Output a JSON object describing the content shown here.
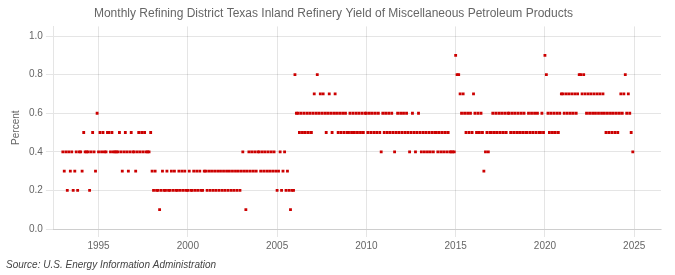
{
  "chart_data": {
    "type": "scatter",
    "title": "Monthly Refining District Texas Inland Refinery Yield of Miscellaneous Petroleum Products",
    "ylabel": "Percent",
    "source": "Source: U.S. Energy Information Administration",
    "color": "#cc0000",
    "marker": "square",
    "grid": true,
    "xlim": [
      1992.5,
      2026.5
    ],
    "xticks": [
      1995,
      2000,
      2005,
      2010,
      2015,
      2020,
      2025
    ],
    "ylim": [
      0.0,
      1.05
    ],
    "yticks": [
      {
        "value": 0.0,
        "label": "0.0"
      },
      0.2,
      0.4,
      0.6,
      0.8,
      {
        "value": 1.0,
        "label": "1.0"
      }
    ],
    "x": [
      1993.0,
      1993.08,
      1993.17,
      1993.25,
      1993.33,
      1993.42,
      1993.5,
      1993.58,
      1993.67,
      1993.75,
      1993.83,
      1993.92,
      1994.0,
      1994.08,
      1994.17,
      1994.25,
      1994.33,
      1994.42,
      1994.5,
      1994.58,
      1994.67,
      1994.75,
      1994.83,
      1994.92,
      1995.0,
      1995.08,
      1995.17,
      1995.25,
      1995.33,
      1995.42,
      1995.5,
      1995.58,
      1995.67,
      1995.75,
      1995.83,
      1995.92,
      1996.0,
      1996.08,
      1996.17,
      1996.25,
      1996.33,
      1996.42,
      1996.5,
      1996.58,
      1996.67,
      1996.75,
      1996.83,
      1996.92,
      1997.0,
      1997.08,
      1997.17,
      1997.25,
      1997.33,
      1997.42,
      1997.5,
      1997.58,
      1997.67,
      1997.75,
      1997.83,
      1997.92,
      1998.0,
      1998.08,
      1998.17,
      1998.25,
      1998.33,
      1998.42,
      1998.5,
      1998.58,
      1998.67,
      1998.75,
      1998.83,
      1998.92,
      1999.0,
      1999.08,
      1999.17,
      1999.25,
      1999.33,
      1999.42,
      1999.5,
      1999.58,
      1999.67,
      1999.75,
      1999.83,
      1999.92,
      2000.0,
      2000.08,
      2000.17,
      2000.25,
      2000.33,
      2000.42,
      2000.5,
      2000.58,
      2000.67,
      2000.75,
      2000.83,
      2000.92,
      2001.0,
      2001.08,
      2001.17,
      2001.25,
      2001.33,
      2001.42,
      2001.5,
      2001.58,
      2001.67,
      2001.75,
      2001.83,
      2001.92,
      2002.0,
      2002.08,
      2002.17,
      2002.25,
      2002.33,
      2002.42,
      2002.5,
      2002.58,
      2002.67,
      2002.75,
      2002.83,
      2002.92,
      2003.0,
      2003.08,
      2003.17,
      2003.25,
      2003.33,
      2003.42,
      2003.5,
      2003.58,
      2003.67,
      2003.75,
      2003.83,
      2003.92,
      2004.0,
      2004.08,
      2004.17,
      2004.25,
      2004.33,
      2004.42,
      2004.5,
      2004.58,
      2004.67,
      2004.75,
      2004.83,
      2004.92,
      2005.0,
      2005.08,
      2005.17,
      2005.25,
      2005.33,
      2005.42,
      2005.5,
      2005.58,
      2005.67,
      2005.75,
      2005.83,
      2005.92,
      2006.0,
      2006.08,
      2006.17,
      2006.25,
      2006.33,
      2006.42,
      2006.5,
      2006.58,
      2006.67,
      2006.75,
      2006.83,
      2006.92,
      2007.0,
      2007.08,
      2007.17,
      2007.25,
      2007.33,
      2007.42,
      2007.5,
      2007.58,
      2007.67,
      2007.75,
      2007.83,
      2007.92,
      2008.0,
      2008.08,
      2008.17,
      2008.25,
      2008.33,
      2008.42,
      2008.5,
      2008.58,
      2008.67,
      2008.75,
      2008.83,
      2008.92,
      2009.0,
      2009.08,
      2009.17,
      2009.25,
      2009.33,
      2009.42,
      2009.5,
      2009.58,
      2009.67,
      2009.75,
      2009.83,
      2009.92,
      2010.0,
      2010.08,
      2010.17,
      2010.25,
      2010.33,
      2010.42,
      2010.5,
      2010.58,
      2010.67,
      2010.75,
      2010.83,
      2010.92,
      2011.0,
      2011.08,
      2011.17,
      2011.25,
      2011.33,
      2011.42,
      2011.5,
      2011.58,
      2011.67,
      2011.75,
      2011.83,
      2011.92,
      2012.0,
      2012.08,
      2012.17,
      2012.25,
      2012.33,
      2012.42,
      2012.5,
      2012.58,
      2012.67,
      2012.75,
      2012.83,
      2012.92,
      2013.0,
      2013.08,
      2013.17,
      2013.25,
      2013.33,
      2013.42,
      2013.5,
      2013.58,
      2013.67,
      2013.75,
      2013.83,
      2013.92,
      2014.0,
      2014.08,
      2014.17,
      2014.25,
      2014.33,
      2014.42,
      2014.5,
      2014.58,
      2014.67,
      2014.75,
      2014.83,
      2014.92,
      2015.0,
      2015.08,
      2015.17,
      2015.25,
      2015.33,
      2015.42,
      2015.5,
      2015.58,
      2015.67,
      2015.75,
      2015.83,
      2015.92,
      2016.0,
      2016.08,
      2016.17,
      2016.25,
      2016.33,
      2016.42,
      2016.5,
      2016.58,
      2016.67,
      2016.75,
      2016.83,
      2016.92,
      2017.0,
      2017.08,
      2017.17,
      2017.25,
      2017.33,
      2017.42,
      2017.5,
      2017.58,
      2017.67,
      2017.75,
      2017.83,
      2017.92,
      2018.0,
      2018.08,
      2018.17,
      2018.25,
      2018.33,
      2018.42,
      2018.5,
      2018.58,
      2018.67,
      2018.75,
      2018.83,
      2018.92,
      2019.0,
      2019.08,
      2019.17,
      2019.25,
      2019.33,
      2019.42,
      2019.5,
      2019.58,
      2019.67,
      2019.75,
      2019.83,
      2019.92,
      2020.0,
      2020.08,
      2020.17,
      2020.25,
      2020.33,
      2020.42,
      2020.5,
      2020.58,
      2020.67,
      2020.75,
      2020.83,
      2020.92,
      2021.0,
      2021.08,
      2021.17,
      2021.25,
      2021.33,
      2021.42,
      2021.5,
      2021.58,
      2021.67,
      2021.75,
      2021.83,
      2021.92,
      2022.0,
      2022.08,
      2022.17,
      2022.25,
      2022.33,
      2022.42,
      2022.5,
      2022.58,
      2022.67,
      2022.75,
      2022.83,
      2022.92,
      2023.0,
      2023.08,
      2023.17,
      2023.25,
      2023.33,
      2023.42,
      2023.5,
      2023.58,
      2023.67,
      2023.75,
      2023.83,
      2023.92,
      2024.0,
      2024.08,
      2024.17,
      2024.25,
      2024.33,
      2024.42,
      2024.5,
      2024.58,
      2024.67,
      2024.75,
      2024.83,
      2024.92
    ],
    "values": [
      0.4,
      0.3,
      0.4,
      0.2,
      0.4,
      0.3,
      0.4,
      0.2,
      0.3,
      0.4,
      0.2,
      0.4,
      0.4,
      0.3,
      0.5,
      0.4,
      0.4,
      0.4,
      0.2,
      0.4,
      0.5,
      0.4,
      0.3,
      0.6,
      0.4,
      0.5,
      0.4,
      0.5,
      0.4,
      0.4,
      0.5,
      0.5,
      0.4,
      0.5,
      0.4,
      0.4,
      0.4,
      0.4,
      0.5,
      0.4,
      0.3,
      0.4,
      0.5,
      0.4,
      0.3,
      0.4,
      0.5,
      0.4,
      0.4,
      0.3,
      0.4,
      0.5,
      0.4,
      0.5,
      0.4,
      0.5,
      0.4,
      0.4,
      0.4,
      0.5,
      0.3,
      0.2,
      0.3,
      0.2,
      0.2,
      0.1,
      0.2,
      0.3,
      0.2,
      0.2,
      0.3,
      0.2,
      0.2,
      0.3,
      0.2,
      0.3,
      0.2,
      0.2,
      0.3,
      0.2,
      0.3,
      0.2,
      0.3,
      0.2,
      0.2,
      0.3,
      0.2,
      0.2,
      0.3,
      0.2,
      0.3,
      0.2,
      0.3,
      0.2,
      0.2,
      0.3,
      0.3,
      0.2,
      0.3,
      0.2,
      0.3,
      0.2,
      0.3,
      0.2,
      0.3,
      0.2,
      0.3,
      0.2,
      0.3,
      0.2,
      0.3,
      0.2,
      0.3,
      0.2,
      0.3,
      0.2,
      0.3,
      0.2,
      0.3,
      0.2,
      0.3,
      0.4,
      0.3,
      0.1,
      0.3,
      0.4,
      0.3,
      0.4,
      0.3,
      0.4,
      0.3,
      0.4,
      0.4,
      0.3,
      0.4,
      0.3,
      0.4,
      0.3,
      0.4,
      0.3,
      0.4,
      0.3,
      0.4,
      0.3,
      0.2,
      0.3,
      0.4,
      0.2,
      0.3,
      0.4,
      0.2,
      0.3,
      0.2,
      0.1,
      0.2,
      0.2,
      0.8,
      0.6,
      0.6,
      0.5,
      0.6,
      0.5,
      0.6,
      0.5,
      0.6,
      0.5,
      0.6,
      0.5,
      0.6,
      0.7,
      0.6,
      0.8,
      0.6,
      0.7,
      0.6,
      0.7,
      0.6,
      0.5,
      0.6,
      0.7,
      0.6,
      0.5,
      0.6,
      0.7,
      0.6,
      0.5,
      0.6,
      0.5,
      0.6,
      0.5,
      0.6,
      0.5,
      0.5,
      0.6,
      0.5,
      0.6,
      0.5,
      0.6,
      0.5,
      0.6,
      0.5,
      0.6,
      0.5,
      0.6,
      0.6,
      0.5,
      0.6,
      0.5,
      0.6,
      0.5,
      0.6,
      0.5,
      0.6,
      0.5,
      0.4,
      0.6,
      0.5,
      0.6,
      0.5,
      0.6,
      0.5,
      0.6,
      0.5,
      0.4,
      0.5,
      0.6,
      0.5,
      0.6,
      0.5,
      0.6,
      0.5,
      0.6,
      0.5,
      0.4,
      0.5,
      0.6,
      0.5,
      0.4,
      0.5,
      0.6,
      0.5,
      0.4,
      0.5,
      0.4,
      0.5,
      0.4,
      0.5,
      0.4,
      0.5,
      0.4,
      0.5,
      0.5,
      0.4,
      0.5,
      0.4,
      0.5,
      0.4,
      0.5,
      0.4,
      0.5,
      0.4,
      0.4,
      0.4,
      0.4,
      0.9,
      0.8,
      0.8,
      0.7,
      0.6,
      0.7,
      0.6,
      0.5,
      0.6,
      0.5,
      0.6,
      0.5,
      0.7,
      0.6,
      0.5,
      0.6,
      0.5,
      0.6,
      0.5,
      0.3,
      0.4,
      0.5,
      0.4,
      0.5,
      0.5,
      0.6,
      0.5,
      0.6,
      0.5,
      0.6,
      0.5,
      0.6,
      0.5,
      0.6,
      0.5,
      0.6,
      0.6,
      0.5,
      0.6,
      0.5,
      0.6,
      0.5,
      0.6,
      0.5,
      0.6,
      0.5,
      0.6,
      0.5,
      0.5,
      0.6,
      0.5,
      0.6,
      0.5,
      0.6,
      0.5,
      0.6,
      0.5,
      0.5,
      0.6,
      0.5,
      0.9,
      0.8,
      0.6,
      0.5,
      0.6,
      0.5,
      0.6,
      0.5,
      0.6,
      0.5,
      0.6,
      0.7,
      0.7,
      0.6,
      0.7,
      0.6,
      0.7,
      0.6,
      0.7,
      0.6,
      0.7,
      0.6,
      0.7,
      0.8,
      0.8,
      0.7,
      0.8,
      0.7,
      0.6,
      0.7,
      0.6,
      0.7,
      0.6,
      0.7,
      0.6,
      0.7,
      0.6,
      0.7,
      0.6,
      0.7,
      0.6,
      0.5,
      0.6,
      0.5,
      0.6,
      0.5,
      0.6,
      0.5,
      0.6,
      0.5,
      0.6,
      0.7,
      0.6,
      0.7,
      0.8,
      0.6,
      0.7,
      0.6,
      0.5,
      0.4
    ]
  }
}
